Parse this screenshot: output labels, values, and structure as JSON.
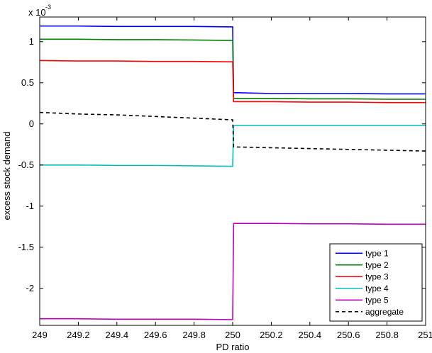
{
  "chart_data": {
    "type": "line",
    "title": "",
    "xlabel": "PD ratio",
    "ylabel": "excess stock demand",
    "y_multiplier_base": "x 10",
    "y_multiplier_exp": "-3",
    "xlim": [
      249,
      251
    ],
    "ylim": [
      -2.45,
      1.3
    ],
    "xticks": [
      249,
      249.2,
      249.4,
      249.6,
      249.8,
      250,
      250.2,
      250.4,
      250.6,
      250.8,
      251
    ],
    "xtick_labels": [
      "249",
      "249.2",
      "249.4",
      "249.6",
      "249.8",
      "250",
      "250.2",
      "250.4",
      "250.6",
      "250.8",
      "251"
    ],
    "yticks": [
      -2,
      -1.5,
      -1,
      -0.5,
      0,
      0.5,
      1
    ],
    "ytick_labels": [
      "-2",
      "-1.5",
      "-1",
      "-0.5",
      "0",
      "0.5",
      "1"
    ],
    "grid": false,
    "legend_position": "bottom-right",
    "series": [
      {
        "name": "type 1",
        "color": "#0000ff",
        "dash": "solid",
        "x": [
          249,
          249.2,
          249.4,
          249.6,
          249.8,
          249.995,
          250,
          250.005,
          250.2,
          250.4,
          250.6,
          250.8,
          251
        ],
        "y": [
          1.19,
          1.19,
          1.185,
          1.185,
          1.185,
          1.18,
          1.18,
          0.38,
          0.37,
          0.37,
          0.37,
          0.365,
          0.365
        ]
      },
      {
        "name": "type 2",
        "color": "#008000",
        "dash": "solid",
        "x": [
          249,
          249.2,
          249.4,
          249.6,
          249.8,
          249.995,
          250,
          250.005,
          250.2,
          250.4,
          250.6,
          250.8,
          251
        ],
        "y": [
          1.03,
          1.03,
          1.025,
          1.025,
          1.02,
          1.015,
          1.015,
          0.31,
          0.31,
          0.305,
          0.305,
          0.3,
          0.3
        ]
      },
      {
        "name": "type 3",
        "color": "#ff0000",
        "dash": "solid",
        "x": [
          249,
          249.2,
          249.4,
          249.6,
          249.8,
          249.995,
          250,
          250.005,
          250.2,
          250.4,
          250.6,
          250.8,
          251
        ],
        "y": [
          0.77,
          0.765,
          0.765,
          0.76,
          0.76,
          0.755,
          0.755,
          0.27,
          0.27,
          0.265,
          0.265,
          0.26,
          0.26
        ]
      },
      {
        "name": "type 4",
        "color": "#00bfbf",
        "dash": "solid",
        "x": [
          249,
          249.2,
          249.4,
          249.6,
          249.8,
          249.995,
          250,
          250.005,
          250.2,
          250.4,
          250.6,
          250.8,
          251
        ],
        "y": [
          -0.5,
          -0.5,
          -0.505,
          -0.505,
          -0.51,
          -0.515,
          -0.515,
          -0.02,
          -0.02,
          -0.02,
          -0.02,
          -0.02,
          -0.02
        ]
      },
      {
        "name": "type 5",
        "color": "#bf00bf",
        "dash": "solid",
        "x": [
          249,
          249.2,
          249.4,
          249.6,
          249.8,
          249.995,
          250,
          250.005,
          250.2,
          250.4,
          250.6,
          250.8,
          251
        ],
        "y": [
          -2.37,
          -2.37,
          -2.375,
          -2.375,
          -2.375,
          -2.38,
          -2.38,
          -1.21,
          -1.21,
          -1.215,
          -1.215,
          -1.22,
          -1.22
        ]
      },
      {
        "name": "aggregate",
        "color": "#000000",
        "dash": "dashed",
        "x": [
          249,
          249.2,
          249.4,
          249.6,
          249.8,
          249.995,
          250,
          250.005,
          250.2,
          250.4,
          250.6,
          250.8,
          251
        ],
        "y": [
          0.14,
          0.12,
          0.11,
          0.09,
          0.07,
          0.05,
          0.05,
          -0.28,
          -0.29,
          -0.3,
          -0.31,
          -0.32,
          -0.33
        ]
      }
    ]
  }
}
